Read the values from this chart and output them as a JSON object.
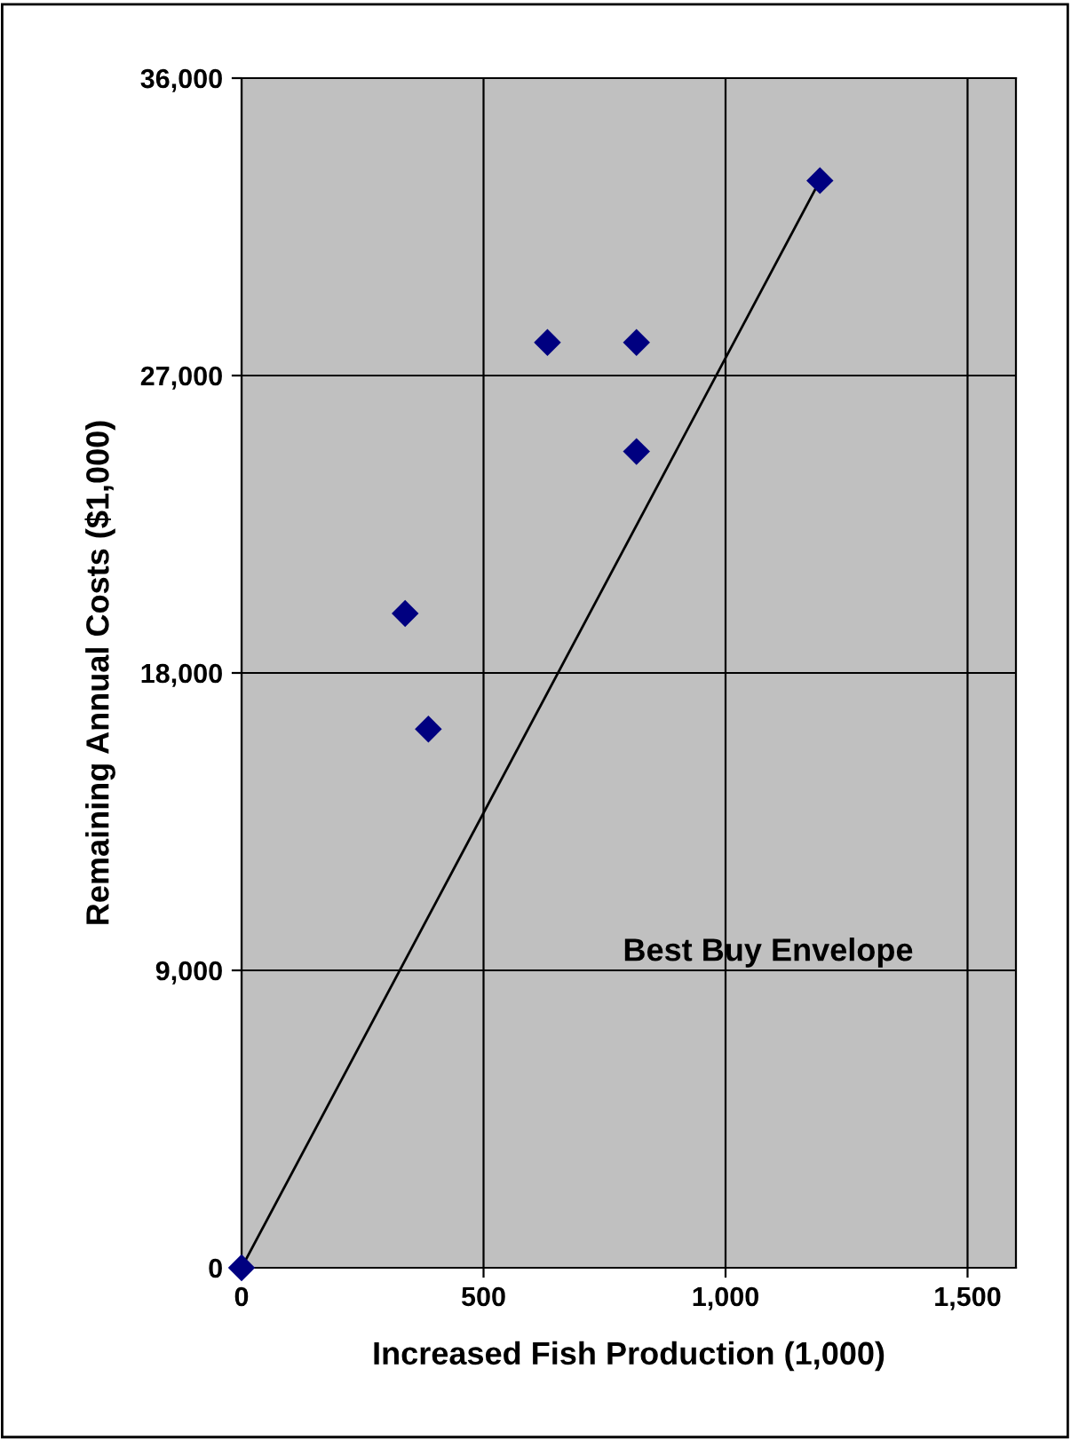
{
  "chart_data": {
    "type": "scatter",
    "xlabel": "Increased Fish Production (1,000)",
    "ylabel": "Remaining Annual Costs ($1,000)",
    "xlim": [
      0,
      1600
    ],
    "xticks": [
      0,
      500,
      {
        "value": 1000,
        "label": "1,000"
      },
      {
        "value": 1500,
        "label": "1,500"
      }
    ],
    "ylim": [
      0,
      36000
    ],
    "yticks": [
      0,
      {
        "value": 9000,
        "label": "9,000"
      },
      {
        "value": 18000,
        "label": "18,000"
      },
      {
        "value": 27000,
        "label": "27,000"
      },
      {
        "value": 36000,
        "label": "36,000"
      }
    ],
    "grid": true,
    "series": [
      {
        "color": "#000080",
        "marker": "diamond",
        "x": [
          0,
          338,
          386,
          632,
          816,
          816,
          1195
        ],
        "values": [
          0,
          19800,
          16300,
          28000,
          28000,
          24700,
          32900
        ]
      },
      {
        "type": "line",
        "color": "#000000",
        "x": [
          0,
          1195
        ],
        "values": [
          0,
          32900
        ]
      }
    ],
    "annotations": [
      "Best Buy Envelope"
    ]
  }
}
